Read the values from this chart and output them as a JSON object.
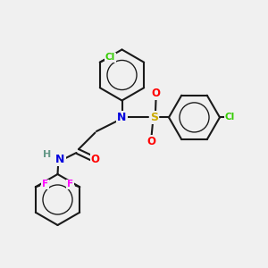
{
  "bg_color": "#f0f0f0",
  "bond_color": "#1a1a1a",
  "bond_width": 1.5,
  "atom_colors": {
    "N": "#0000dd",
    "S": "#ccaa00",
    "O": "#ff0000",
    "F": "#ff00ff",
    "Cl": "#33cc00",
    "H": "#669988",
    "C": "#1a1a1a"
  },
  "figsize": [
    3.0,
    3.0
  ],
  "dpi": 100
}
